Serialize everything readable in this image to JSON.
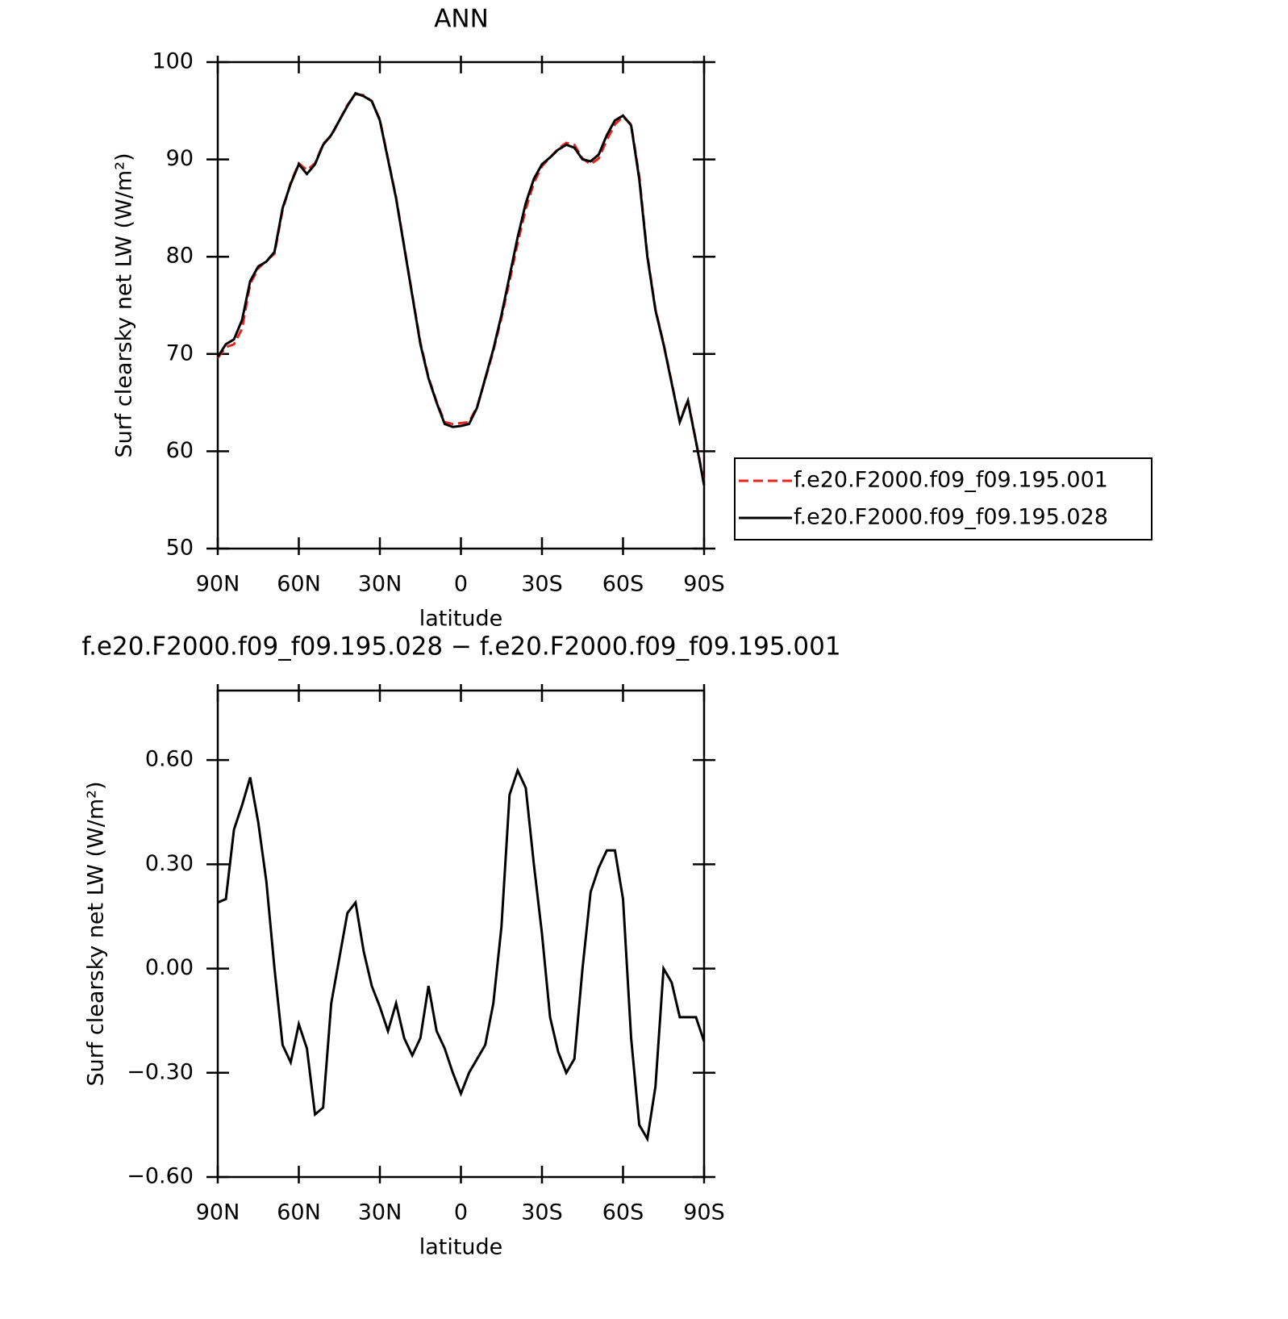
{
  "chart_data": [
    {
      "type": "line",
      "title": "ANN",
      "xlabel": "latitude",
      "ylabel": "Surf clearsky net LW (W/m²)",
      "x": [
        90,
        87,
        84,
        81,
        78,
        75,
        72,
        69,
        66,
        63,
        60,
        57,
        54,
        51,
        48,
        45,
        42,
        39,
        36,
        33,
        30,
        27,
        24,
        21,
        18,
        15,
        12,
        9,
        6,
        3,
        0,
        -3,
        -6,
        -9,
        -12,
        -15,
        -18,
        -21,
        -24,
        -27,
        -30,
        -33,
        -36,
        -39,
        -42,
        -45,
        -48,
        -51,
        -54,
        -57,
        -60,
        -63,
        -66,
        -69,
        -72,
        -75,
        -78,
        -81,
        -84,
        -87,
        -90
      ],
      "series": [
        {
          "name": "f.e20.F2000.f09_f09.195.001",
          "color": "#e8221c",
          "linestyle": "dashed",
          "values": [
            69.6,
            70.7,
            71.0,
            72.6,
            77.2,
            78.8,
            79.6,
            80.3,
            84.8,
            87.6,
            89.6,
            88.9,
            89.6,
            91.6,
            92.4,
            94.0,
            95.6,
            96.7,
            96.6,
            96.0,
            94.1,
            90.1,
            86.1,
            81.1,
            76.1,
            71.2,
            67.6,
            65.1,
            63.0,
            62.8,
            62.9,
            63.0,
            64.6,
            67.4,
            70.3,
            73.7,
            77.5,
            81.4,
            84.9,
            87.6,
            89.3,
            90.2,
            91.1,
            91.7,
            91.5,
            90.1,
            89.5,
            90.1,
            92.0,
            93.6,
            94.4,
            93.6,
            88.3,
            80.2,
            74.6,
            71.1,
            67.1,
            63.1,
            65.3,
            61.1,
            56.7
          ]
        },
        {
          "name": "f.e20.F2000.f09_f09.195.028",
          "color": "#000000",
          "linestyle": "solid",
          "values": [
            69.7,
            71.0,
            71.5,
            73.5,
            77.5,
            79.0,
            79.5,
            80.5,
            85.0,
            87.5,
            89.5,
            88.5,
            89.5,
            91.5,
            92.5,
            94.0,
            95.5,
            96.8,
            96.5,
            96.0,
            94.0,
            90.0,
            86.0,
            81.0,
            76.0,
            71.0,
            67.5,
            65.0,
            62.8,
            62.5,
            62.6,
            62.8,
            64.5,
            67.5,
            70.5,
            74.0,
            78.0,
            82.0,
            85.5,
            88.0,
            89.5,
            90.2,
            91.0,
            91.5,
            91.2,
            90.0,
            89.8,
            90.5,
            92.5,
            94.0,
            94.5,
            93.5,
            88.0,
            80.0,
            74.5,
            71.0,
            67.0,
            63.0,
            65.2,
            61.0,
            56.5
          ]
        }
      ],
      "xlim": [
        90,
        -90
      ],
      "xticks": [
        {
          "value": 90,
          "label": "90N"
        },
        {
          "value": 60,
          "label": "60N"
        },
        {
          "value": 30,
          "label": "30N"
        },
        0,
        {
          "value": -30,
          "label": "30S"
        },
        {
          "value": -60,
          "label": "60S"
        },
        {
          "value": -90,
          "label": "90S"
        }
      ],
      "ylim": [
        50,
        100
      ],
      "yticks": [
        50,
        60,
        70,
        80,
        90,
        100
      ],
      "legend": "right"
    },
    {
      "type": "line",
      "title": "f.e20.F2000.f09_f09.195.028 − f.e20.F2000.f09_f09.195.001",
      "xlabel": "latitude",
      "ylabel": "Surf clearsky net LW (W/m²)",
      "x": [
        90,
        87,
        84,
        81,
        78,
        75,
        72,
        69,
        66,
        63,
        60,
        57,
        54,
        51,
        48,
        45,
        42,
        39,
        36,
        33,
        30,
        27,
        24,
        21,
        18,
        15,
        12,
        9,
        6,
        3,
        0,
        -3,
        -6,
        -9,
        -12,
        -15,
        -18,
        -21,
        -24,
        -27,
        -30,
        -33,
        -36,
        -39,
        -42,
        -45,
        -48,
        -51,
        -54,
        -57,
        -60,
        -63,
        -66,
        -69,
        -72,
        -75,
        -78,
        -81,
        -84,
        -87,
        -90
      ],
      "color": "#000000",
      "values": [
        0.19,
        0.2,
        0.4,
        0.47,
        0.55,
        0.42,
        0.25,
        0.0,
        -0.22,
        -0.27,
        -0.16,
        -0.23,
        -0.42,
        -0.4,
        -0.1,
        0.03,
        0.16,
        0.19,
        0.05,
        -0.05,
        -0.11,
        -0.18,
        -0.1,
        -0.2,
        -0.25,
        -0.2,
        -0.05,
        -0.18,
        -0.23,
        -0.3,
        -0.36,
        -0.3,
        -0.26,
        -0.22,
        -0.1,
        0.12,
        0.5,
        0.57,
        0.52,
        0.3,
        0.1,
        -0.14,
        -0.24,
        -0.3,
        -0.26,
        0.0,
        0.22,
        0.29,
        0.34,
        0.34,
        0.2,
        -0.2,
        -0.45,
        -0.49,
        -0.34,
        0.0,
        -0.04,
        -0.14,
        -0.14,
        -0.14,
        -0.21
      ],
      "xlim": [
        90,
        -90
      ],
      "xticks": [
        {
          "value": 90,
          "label": "90N"
        },
        {
          "value": 60,
          "label": "60N"
        },
        {
          "value": 30,
          "label": "30N"
        },
        0,
        {
          "value": -30,
          "label": "30S"
        },
        {
          "value": -60,
          "label": "60S"
        },
        {
          "value": -90,
          "label": "90S"
        }
      ],
      "ylim": [
        -0.6,
        0.8
      ],
      "yticks": [
        {
          "value": -0.6,
          "label": "−0.60"
        },
        {
          "value": -0.3,
          "label": "−0.30"
        },
        {
          "value": 0,
          "label": "0.00"
        },
        {
          "value": 0.3,
          "label": "0.30"
        },
        {
          "value": 0.6,
          "label": "0.60"
        }
      ]
    }
  ]
}
